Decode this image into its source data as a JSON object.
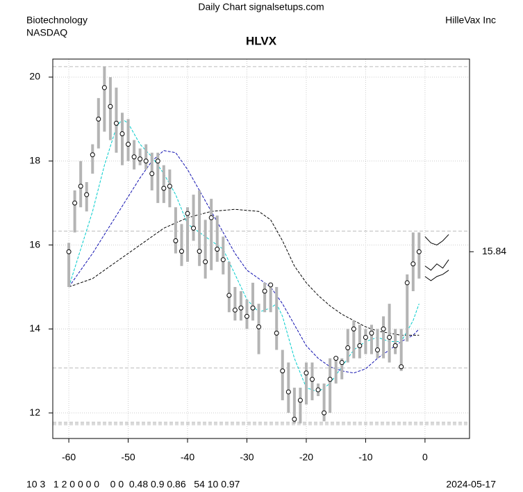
{
  "chart_data": {
    "type": "ohlc",
    "title": "HLVX",
    "site": "Daily Chart signalsetups.com",
    "sector": "Biotechnology",
    "exchange": "NASDAQ",
    "company": "HilleVax Inc",
    "footer_left": "10 3   1 2 0 0 0 0    0 0  0.48 0.9 0.86   54 10 0.97",
    "footer_right": "2024-05-17",
    "xlim": [
      -62.7,
      7.5
    ],
    "ylim": [
      11.39,
      20.43
    ],
    "xticks": [
      -60,
      -50,
      -40,
      -30,
      -20,
      -10,
      0
    ],
    "yticks": [
      12,
      14,
      16,
      18,
      20
    ],
    "grid": true,
    "x": [
      -60,
      -59,
      -58,
      -57,
      -56,
      -55,
      -54,
      -53,
      -52,
      -51,
      -50,
      -49,
      -48,
      -47,
      -46,
      -45,
      -44,
      -43,
      -42,
      -41,
      -40,
      -39,
      -38,
      -37,
      -36,
      -35,
      -34,
      -33,
      -32,
      -31,
      -30,
      -29,
      -28,
      -27,
      -26,
      -25,
      -24,
      -23,
      -22,
      -21,
      -20,
      -19,
      -18,
      -17,
      -16,
      -15,
      -14,
      -13,
      -12,
      -11,
      -10,
      -9,
      -8,
      -7,
      -6,
      -5,
      -4,
      -3,
      -2,
      -1
    ],
    "close": [
      15.84,
      17.0,
      17.4,
      17.2,
      18.15,
      19.0,
      19.75,
      19.3,
      18.9,
      18.65,
      18.4,
      18.1,
      18.05,
      18.0,
      17.7,
      18.0,
      17.35,
      17.4,
      16.1,
      15.85,
      16.75,
      16.4,
      15.85,
      15.6,
      16.65,
      15.9,
      15.65,
      14.8,
      14.45,
      14.5,
      14.3,
      14.5,
      14.05,
      14.9,
      15.05,
      13.9,
      13.0,
      12.5,
      11.85,
      12.3,
      12.95,
      12.8,
      12.55,
      12.0,
      12.8,
      13.3,
      13.2,
      13.55,
      14.0,
      13.6,
      13.8,
      13.9,
      13.5,
      14.0,
      13.8,
      13.6,
      13.1,
      15.1,
      15.55,
      15.84
    ],
    "high": [
      16.05,
      17.3,
      18.0,
      17.5,
      18.4,
      19.5,
      20.25,
      20.0,
      19.75,
      19.15,
      19.0,
      18.5,
      18.3,
      18.4,
      18.2,
      18.2,
      17.9,
      17.8,
      16.9,
      16.5,
      16.9,
      17.2,
      17.3,
      16.6,
      17.1,
      16.7,
      16.2,
      15.6,
      15.0,
      14.9,
      14.7,
      15.1,
      14.6,
      15.1,
      15.1,
      15.0,
      13.5,
      13.2,
      12.6,
      12.6,
      13.2,
      13.2,
      12.7,
      12.7,
      13.3,
      13.3,
      13.3,
      14.0,
      14.2,
      14.1,
      14.0,
      14.1,
      14.0,
      14.3,
      14.6,
      14.0,
      14.0,
      15.3,
      16.3,
      16.3
    ],
    "low": [
      15.0,
      16.3,
      16.9,
      16.8,
      17.7,
      18.3,
      18.7,
      18.5,
      18.2,
      17.9,
      18.0,
      17.8,
      17.9,
      17.8,
      17.3,
      17.0,
      17.0,
      16.9,
      15.8,
      15.5,
      15.6,
      16.1,
      15.5,
      15.2,
      15.4,
      15.6,
      15.3,
      14.4,
      14.2,
      14.2,
      14.0,
      14.2,
      13.4,
      14.4,
      14.4,
      13.5,
      12.3,
      12.0,
      11.75,
      11.75,
      12.2,
      12.3,
      12.4,
      11.8,
      12.0,
      12.7,
      12.8,
      13.2,
      13.3,
      13.3,
      13.4,
      13.4,
      13.3,
      13.3,
      13.2,
      13.4,
      13.0,
      13.7,
      14.9,
      15.2
    ],
    "bar_color": "#b4b4b4",
    "lines": [
      {
        "color": "#00cccc",
        "dash": true,
        "x": [
          -60,
          -58,
          -56,
          -54,
          -52,
          -51,
          -50,
          -48,
          -46,
          -44,
          -42,
          -40,
          -38,
          -36,
          -34,
          -32,
          -30,
          -28,
          -26,
          -25,
          -24,
          -22,
          -20,
          -18,
          -16,
          -14,
          -12,
          -10,
          -8,
          -6,
          -4,
          -2,
          -1
        ],
        "values": [
          15.0,
          15.9,
          16.8,
          17.9,
          18.8,
          19.0,
          18.9,
          18.4,
          18.1,
          17.7,
          17.2,
          16.5,
          16.3,
          16.1,
          15.9,
          15.3,
          14.7,
          14.4,
          14.5,
          14.6,
          14.3,
          13.3,
          12.6,
          12.5,
          12.7,
          13.1,
          13.5,
          13.7,
          13.8,
          13.7,
          13.7,
          14.2,
          14.6
        ]
      },
      {
        "color": "#1010b0",
        "dash": true,
        "x": [
          -60,
          -56,
          -52,
          -48,
          -46,
          -44,
          -42,
          -40,
          -38,
          -36,
          -34,
          -32,
          -30,
          -28,
          -26,
          -24,
          -22,
          -20,
          -18,
          -16,
          -14,
          -12,
          -10,
          -8,
          -6,
          -4,
          -2,
          -1
        ],
        "values": [
          15.0,
          15.8,
          16.7,
          17.6,
          18.0,
          18.25,
          18.2,
          17.8,
          17.3,
          16.8,
          16.3,
          15.8,
          15.4,
          15.2,
          15.0,
          14.6,
          14.1,
          13.6,
          13.3,
          13.1,
          13.0,
          12.95,
          13.05,
          13.3,
          13.5,
          13.7,
          13.85,
          14.0
        ]
      },
      {
        "color": "#000000",
        "dash": true,
        "x": [
          -60,
          -56,
          -52,
          -48,
          -44,
          -40,
          -36,
          -32,
          -28,
          -26,
          -24,
          -22,
          -20,
          -18,
          -16,
          -14,
          -12,
          -10,
          -8,
          -6,
          -4,
          -2,
          -1
        ],
        "values": [
          15.0,
          15.2,
          15.6,
          16.0,
          16.4,
          16.65,
          16.8,
          16.85,
          16.8,
          16.6,
          16.1,
          15.5,
          15.1,
          14.8,
          14.55,
          14.35,
          14.2,
          14.05,
          13.95,
          13.9,
          13.85,
          13.85,
          13.85
        ]
      },
      {
        "color": "#000000",
        "dash": false,
        "x": [
          0,
          1,
          2,
          3,
          4
        ],
        "values": [
          16.2,
          16.05,
          16.0,
          16.1,
          16.25
        ]
      },
      {
        "color": "#000000",
        "dash": false,
        "x": [
          0,
          1,
          2,
          3,
          4
        ],
        "values": [
          15.5,
          15.4,
          15.55,
          15.45,
          15.65
        ]
      },
      {
        "color": "#000000",
        "dash": false,
        "x": [
          0,
          1,
          2,
          3,
          4
        ],
        "values": [
          15.25,
          15.15,
          15.25,
          15.3,
          15.4
        ]
      }
    ],
    "hlines": [
      20.25,
      16.33,
      13.07,
      11.78,
      11.72,
      11.75
    ],
    "last_label": {
      "value": 15.84,
      "label": "15.84"
    }
  }
}
